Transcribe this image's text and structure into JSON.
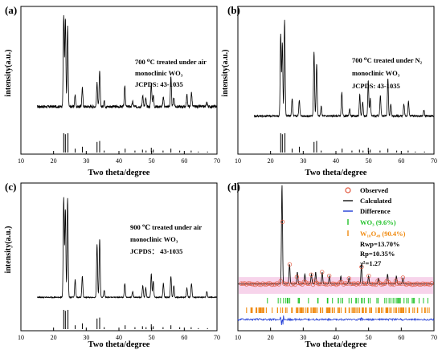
{
  "chart_data": [
    {
      "type": "line",
      "panel_label": "(a)",
      "xlabel": "Two theta/degree",
      "ylabel": "intensity(a.u.)",
      "xlim": [
        10,
        70
      ],
      "x_ticks": [
        10,
        20,
        30,
        40,
        50,
        60,
        70
      ],
      "annotation_lines": [
        "700 ⁰C treated under air",
        "monoclinic WO₃",
        "JCPDS: 43-1035"
      ],
      "baseline": 0.2,
      "noise": 0.012,
      "peaks": [
        [
          23.1,
          0.78
        ],
        [
          23.6,
          0.75
        ],
        [
          24.3,
          0.68
        ],
        [
          26.6,
          0.1
        ],
        [
          28.8,
          0.16
        ],
        [
          33.3,
          0.2
        ],
        [
          34.1,
          0.3
        ],
        [
          35.5,
          0.05
        ],
        [
          41.8,
          0.18
        ],
        [
          44.2,
          0.04
        ],
        [
          47.3,
          0.1
        ],
        [
          48.2,
          0.07
        ],
        [
          49.9,
          0.2
        ],
        [
          50.5,
          0.1
        ],
        [
          53.6,
          0.08
        ],
        [
          55.9,
          0.25
        ],
        [
          56.8,
          0.08
        ],
        [
          60.8,
          0.1
        ],
        [
          62.2,
          0.12
        ],
        [
          66.9,
          0.04
        ]
      ],
      "reference_sticks": [
        [
          23.1,
          1.0
        ],
        [
          23.6,
          0.95
        ],
        [
          24.4,
          1.0
        ],
        [
          26.6,
          0.2
        ],
        [
          28.8,
          0.3
        ],
        [
          33.3,
          0.55
        ],
        [
          34.1,
          0.6
        ],
        [
          35.5,
          0.1
        ],
        [
          41.9,
          0.2
        ],
        [
          44.9,
          0.1
        ],
        [
          47.2,
          0.15
        ],
        [
          48.3,
          0.1
        ],
        [
          49.9,
          0.25
        ],
        [
          50.5,
          0.15
        ],
        [
          53.5,
          0.1
        ],
        [
          55.9,
          0.2
        ],
        [
          58.6,
          0.1
        ],
        [
          62.1,
          0.1
        ],
        [
          64.3,
          0.05
        ],
        [
          67.1,
          0.05
        ]
      ]
    },
    {
      "type": "line",
      "panel_label": "(b)",
      "xlabel": "Two theta/degree",
      "ylabel": "intensity(a.u.)",
      "xlim": [
        10,
        70
      ],
      "x_ticks": [
        10,
        20,
        30,
        40,
        50,
        60,
        70
      ],
      "annotation_lines": [
        "700 ⁰C treated under N₂",
        "monoclinic WO₃",
        "JCPDS: 43-1035"
      ],
      "baseline": 0.12,
      "noise": 0.008,
      "peaks": [
        [
          23.1,
          0.7
        ],
        [
          23.6,
          0.62
        ],
        [
          24.3,
          0.82
        ],
        [
          26.6,
          0.15
        ],
        [
          28.8,
          0.14
        ],
        [
          33.3,
          0.55
        ],
        [
          34.1,
          0.45
        ],
        [
          35.5,
          0.08
        ],
        [
          41.8,
          0.2
        ],
        [
          44.2,
          0.06
        ],
        [
          47.3,
          0.18
        ],
        [
          48.2,
          0.12
        ],
        [
          49.9,
          0.3
        ],
        [
          50.5,
          0.15
        ],
        [
          53.6,
          0.18
        ],
        [
          55.9,
          0.32
        ],
        [
          56.8,
          0.1
        ],
        [
          60.8,
          0.1
        ],
        [
          62.2,
          0.12
        ],
        [
          66.9,
          0.05
        ]
      ],
      "reference_sticks": [
        [
          23.1,
          1.0
        ],
        [
          23.6,
          0.95
        ],
        [
          24.4,
          1.0
        ],
        [
          26.6,
          0.2
        ],
        [
          28.8,
          0.3
        ],
        [
          33.3,
          0.55
        ],
        [
          34.1,
          0.6
        ],
        [
          35.5,
          0.1
        ],
        [
          41.9,
          0.2
        ],
        [
          44.9,
          0.1
        ],
        [
          47.2,
          0.15
        ],
        [
          48.3,
          0.1
        ],
        [
          49.9,
          0.25
        ],
        [
          50.5,
          0.15
        ],
        [
          53.5,
          0.1
        ],
        [
          55.9,
          0.2
        ],
        [
          58.6,
          0.1
        ],
        [
          62.1,
          0.1
        ],
        [
          64.3,
          0.05
        ],
        [
          67.1,
          0.05
        ]
      ]
    },
    {
      "type": "line",
      "panel_label": "(c)",
      "xlabel": "Two theta/degree",
      "ylabel": "intensity(a.u.)",
      "xlim": [
        10,
        70
      ],
      "x_ticks": [
        10,
        20,
        30,
        40,
        50,
        60,
        70
      ],
      "annotation_lines": [
        "900 ℃ treated under air",
        "monoclinic WO₃",
        "JCPDS：  43-1035"
      ],
      "baseline": 0.08,
      "noise": 0.004,
      "peaks": [
        [
          23.1,
          0.85
        ],
        [
          23.6,
          0.75
        ],
        [
          24.3,
          0.85
        ],
        [
          26.6,
          0.15
        ],
        [
          28.8,
          0.18
        ],
        [
          33.3,
          0.45
        ],
        [
          34.1,
          0.5
        ],
        [
          35.5,
          0.06
        ],
        [
          41.8,
          0.12
        ],
        [
          44.2,
          0.05
        ],
        [
          47.3,
          0.1
        ],
        [
          48.2,
          0.08
        ],
        [
          49.9,
          0.2
        ],
        [
          50.5,
          0.14
        ],
        [
          53.6,
          0.12
        ],
        [
          55.9,
          0.18
        ],
        [
          56.8,
          0.1
        ],
        [
          60.8,
          0.08
        ],
        [
          62.2,
          0.12
        ],
        [
          66.9,
          0.05
        ]
      ],
      "reference_sticks": [
        [
          23.1,
          1.0
        ],
        [
          23.6,
          0.95
        ],
        [
          24.4,
          1.0
        ],
        [
          26.6,
          0.2
        ],
        [
          28.8,
          0.3
        ],
        [
          33.3,
          0.55
        ],
        [
          34.1,
          0.6
        ],
        [
          35.5,
          0.1
        ],
        [
          41.9,
          0.2
        ],
        [
          44.9,
          0.1
        ],
        [
          47.2,
          0.15
        ],
        [
          48.3,
          0.1
        ],
        [
          49.9,
          0.25
        ],
        [
          50.5,
          0.15
        ],
        [
          53.5,
          0.1
        ],
        [
          55.9,
          0.2
        ],
        [
          58.6,
          0.1
        ],
        [
          62.1,
          0.1
        ],
        [
          64.3,
          0.05
        ],
        [
          67.1,
          0.05
        ]
      ]
    },
    {
      "type": "scatter",
      "panel_label": "(d)",
      "xlabel": "Two theta/degree",
      "xlim": [
        10,
        70
      ],
      "x_ticks": [
        10,
        20,
        30,
        40,
        50,
        60,
        70
      ],
      "legend": [
        "Observed",
        "Calculated",
        "Difference",
        "WO₃ (9.6%)",
        "W₁₈O₄₉ (90.4%)"
      ],
      "stats": [
        "Rwp=13.70%",
        "Rp=10.35%",
        "χ²=1.27"
      ],
      "baseline": 0.05,
      "peaks": [
        [
          23.5,
          1.0
        ],
        [
          25.8,
          0.2
        ],
        [
          28.2,
          0.12
        ],
        [
          30.5,
          0.1
        ],
        [
          32.5,
          0.1
        ],
        [
          33.8,
          0.12
        ],
        [
          35.8,
          0.12
        ],
        [
          38.0,
          0.08
        ],
        [
          41.5,
          0.08
        ],
        [
          44.0,
          0.06
        ],
        [
          47.8,
          0.18
        ],
        [
          50.0,
          0.08
        ],
        [
          53.0,
          0.06
        ],
        [
          55.8,
          0.1
        ],
        [
          58.5,
          0.08
        ],
        [
          60.5,
          0.06
        ]
      ],
      "tick_rows": [
        "WO₃ (9.6%)",
        "W₁₈O₄₉ (90.4%)"
      ],
      "colors": {
        "observed": "#e0553b",
        "calculated": "#111111",
        "difference": "#1f3bd6",
        "wo3": "#22c22a",
        "w18o49": "#f08a10",
        "band": "#f5c9e6"
      }
    }
  ]
}
